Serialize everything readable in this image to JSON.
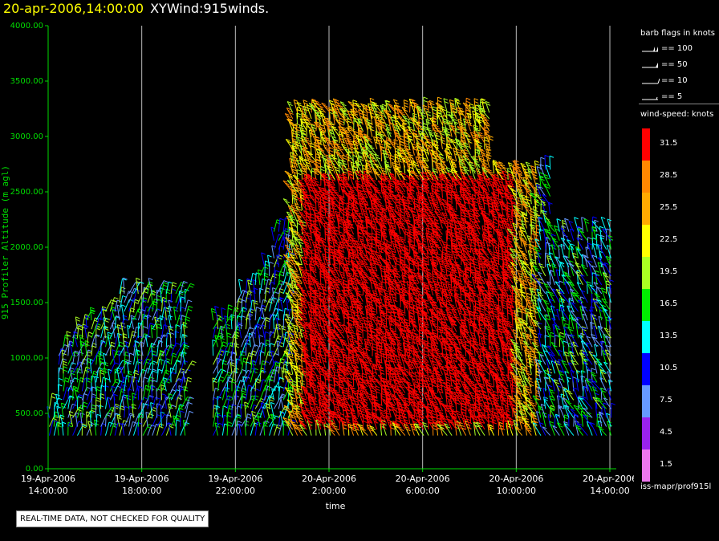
{
  "title": {
    "date": "20-apr-2006,14:00:00",
    "name": "XYWind:915winds."
  },
  "chart_data": {
    "type": "wind_barb_time_height",
    "ylabel": "915 Profiler Altitude (m agl)",
    "xlabel": "time",
    "ylim": [
      0,
      4000
    ],
    "y_ticks": [
      "0.00",
      "500.00",
      "1000.00",
      "1500.00",
      "2000.00",
      "2500.00",
      "3000.00",
      "3500.00",
      "4000.00"
    ],
    "x_ticks": [
      {
        "date": "19-Apr-2006",
        "time": "14:00:00"
      },
      {
        "date": "19-Apr-2006",
        "time": "18:00:00"
      },
      {
        "date": "19-Apr-2006",
        "time": "22:00:00"
      },
      {
        "date": "20-Apr-2006",
        "time": "2:00:00"
      },
      {
        "date": "20-Apr-2006",
        "time": "6:00:00"
      },
      {
        "date": "20-Apr-2006",
        "time": "10:00:00"
      },
      {
        "date": "20-Apr-2006",
        "time": "14:00:00"
      }
    ],
    "x_range_hours": [
      0,
      24
    ],
    "grid_x": true,
    "colorbar": {
      "title": "wind-speed: knots",
      "levels": [
        "31.5",
        "28.5",
        "25.5",
        "22.5",
        "19.5",
        "16.5",
        "13.5",
        "10.5",
        "7.5",
        "4.5",
        "1.5"
      ],
      "colors": [
        "#ff0000",
        "#ff8800",
        "#ffaa00",
        "#ffff00",
        "#aaff22",
        "#00ee00",
        "#00ffff",
        "#0000ff",
        "#6699ff",
        "#9922ee",
        "#ee77ee"
      ]
    },
    "barb_legend": {
      "title": "barb flags in knots",
      "items": [
        "== 100",
        "== 50",
        "== 10",
        "== 5"
      ]
    }
  },
  "footer_id": "iss-mapr/prof915l",
  "notice": "REAL-TIME DATA, NOT CHECKED FOR QUALITY"
}
